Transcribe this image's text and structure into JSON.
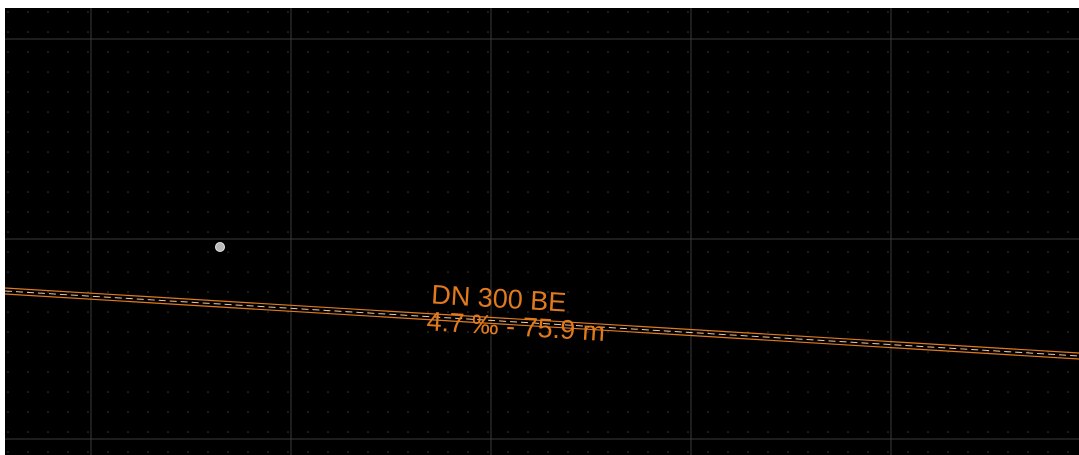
{
  "viewport": {
    "background_color": "#000000",
    "grid_color": "#3a3a3a",
    "dot_color": "#3c3c3c"
  },
  "pipe": {
    "color": "#e07a1c",
    "label_line1": "DN 300 BE",
    "label_line2": "4.7 ‰ - 75.9 m"
  },
  "node": {
    "color": "#c8c8c8",
    "icon": "circle-node-icon"
  }
}
